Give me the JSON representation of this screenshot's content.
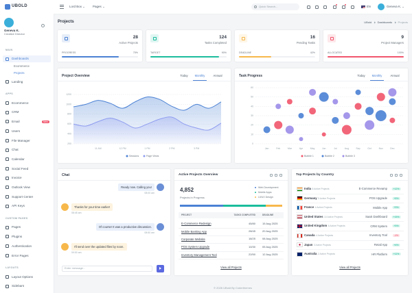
{
  "sidebar": {
    "brand": "UBOLD",
    "user_name": "Geneva K.",
    "user_role": "Creative Director",
    "nav": [
      {
        "title": "MAIN",
        "items": [
          {
            "label": "Dashboards",
            "active": true,
            "children": [
              "Ecommerce",
              "Projects"
            ],
            "active_child": 1
          },
          {
            "label": "Landing"
          }
        ]
      },
      {
        "title": "APPS",
        "items": [
          {
            "label": "Ecommerce"
          },
          {
            "label": "CRM"
          },
          {
            "label": "Email",
            "badge": "New"
          },
          {
            "label": "Users"
          },
          {
            "label": "File Manager"
          },
          {
            "label": "Chat"
          },
          {
            "label": "Calendar"
          },
          {
            "label": "Social Feed"
          },
          {
            "label": "Invoice"
          },
          {
            "label": "Outlook View"
          },
          {
            "label": "Support Center"
          },
          {
            "label": "API Keys"
          }
        ]
      },
      {
        "title": "CUSTOM PAGES",
        "items": [
          {
            "label": "Pages"
          },
          {
            "label": "Plugins"
          },
          {
            "label": "Authentication"
          },
          {
            "label": "Error Pages"
          }
        ]
      },
      {
        "title": "LAYOUTS",
        "items": [
          {
            "label": "Layout Options"
          },
          {
            "label": "Sidebars"
          }
        ]
      }
    ]
  },
  "topbar": {
    "menus": [
      "Lord Box",
      "Pages"
    ],
    "search_placeholder": "Quick Search...",
    "language": "EN",
    "user": "Geneva K."
  },
  "page": {
    "title": "Projects",
    "breadcrumb": [
      "UBold",
      "Dashboards",
      "Projects"
    ]
  },
  "stats": [
    {
      "value": 28,
      "label": "Active Projects",
      "color": "#4a81d4",
      "progress": {
        "label": "PROGRESS",
        "value": 75,
        "value_label": "75%"
      }
    },
    {
      "value": 124,
      "label": "Tasks Completed",
      "color": "#1abc9c",
      "progress": {
        "label": "TARGET",
        "value": 90,
        "value_label": "90%"
      }
    },
    {
      "value": 16,
      "label": "Pending Tasks",
      "color": "#f7b84b",
      "progress": {
        "label": "DEADLINE",
        "value": 42,
        "value_label": "42%"
      }
    },
    {
      "value": 9,
      "label": "Project Managers",
      "color": "#f1556c",
      "progress": {
        "label": "ALLOCATED",
        "value": 100,
        "value_label": "100%"
      }
    }
  ],
  "project_overview": {
    "type": "area",
    "title": "Project Overview",
    "tabs": [
      "Today",
      "Monthly",
      "Annual"
    ],
    "active_tab": 1,
    "categories": [
      null,
      null,
      "11 AM",
      null,
      "12 PM",
      null,
      "1 PM",
      null,
      "2 PM",
      null,
      "3 PM",
      null,
      null
    ],
    "series": [
      {
        "name": "Sessions",
        "color": "#4a81d4",
        "values": [
          950,
          1000,
          1080,
          1020,
          920,
          1050,
          1150,
          1100,
          960,
          880,
          1000,
          920,
          1050
        ]
      },
      {
        "name": "Page Views",
        "color": "#8e9cf0",
        "values": [
          600,
          560,
          650,
          720,
          640,
          520,
          600,
          700,
          740,
          600,
          520,
          480,
          620
        ]
      }
    ],
    "ylim": [
      200,
      1200
    ],
    "yticks": [
      200,
      400,
      600,
      800,
      1000,
      1200
    ],
    "grid": true
  },
  "task_progress": {
    "type": "bubble",
    "title": "Task Progress",
    "tabs": [
      "Today",
      "Monthly",
      "Annual"
    ],
    "active_tab": 1,
    "xlim": [
      0,
      13
    ],
    "xticks": [
      {
        "value": 1,
        "label": "Jan"
      },
      {
        "value": 2,
        "label": "Feb"
      },
      {
        "value": 3,
        "label": "Mar"
      },
      {
        "value": 4,
        "label": "Apr"
      },
      {
        "value": 5,
        "label": "May"
      },
      {
        "value": 6,
        "label": "Jun"
      },
      {
        "value": 7,
        "label": "Jul"
      },
      {
        "value": 8,
        "label": "Aug"
      },
      {
        "value": 9,
        "label": "Sep"
      },
      {
        "value": 10,
        "label": "Oct"
      },
      {
        "value": 11,
        "label": "Nov"
      },
      {
        "value": 12,
        "label": "Dec"
      }
    ],
    "ylim": [
      0,
      60
    ],
    "yticks": [
      0,
      10,
      20,
      30,
      40,
      50,
      60
    ],
    "grid": true,
    "series": [
      {
        "name": "Bubble 1",
        "color": "#f1556c",
        "x": [
          2,
          3,
          5,
          6,
          8,
          9,
          11,
          12
        ],
        "values": [
          20,
          45,
          35,
          10,
          15,
          40,
          50,
          25
        ],
        "sizes": [
          12,
          8,
          10,
          6,
          14,
          10,
          12,
          8
        ]
      },
      {
        "name": "Bubble 2",
        "color": "#4a81d4",
        "x": [
          1,
          4,
          6,
          7,
          9,
          10,
          11,
          12
        ],
        "values": [
          15,
          30,
          50,
          25,
          55,
          35,
          30,
          45
        ],
        "sizes": [
          10,
          8,
          14,
          10,
          8,
          12,
          16,
          10
        ]
      },
      {
        "name": "Bubble 3",
        "color": "#9b8ce8",
        "x": [
          2,
          3,
          4,
          5,
          7,
          8,
          10,
          12
        ],
        "values": [
          40,
          15,
          5,
          55,
          45,
          30,
          20,
          55
        ],
        "sizes": [
          8,
          12,
          6,
          10,
          8,
          10,
          14,
          12
        ]
      }
    ]
  },
  "chat": {
    "title": "Chat",
    "messages": [
      {
        "side": "out",
        "text": "Ready now. Calling you!",
        "time": "08:00 am"
      },
      {
        "side": "in",
        "text": "Thanks for your time earlier!",
        "time": "08:45 am"
      },
      {
        "side": "out",
        "text": "Of course! It was a productive discussion.",
        "time": "08:50 am"
      },
      {
        "side": "in",
        "text": "I'll send over the updated files by noon.",
        "time": "09:00 am"
      }
    ],
    "input_placeholder": "Enter message..."
  },
  "active_projects": {
    "title": "Active Projects Overview",
    "total": "4,852",
    "total_label": "Projects in Progress",
    "legend": [
      {
        "name": "Web Development",
        "color": "#4a81d4"
      },
      {
        "name": "Mobile Apps",
        "color": "#1abc9c"
      },
      {
        "name": "UI/UX Design",
        "color": "#f7b84b"
      }
    ],
    "columns": [
      "PROJECT",
      "TASKS COMPLETED",
      "DEADLINE"
    ],
    "rows": [
      [
        "E-Commerce Redesign",
        "45/80",
        "15 Aug 2025"
      ],
      [
        "Mobile Banking App",
        "28/45",
        "20 Aug 2025"
      ],
      [
        "Corporate Website",
        "18/25",
        "08 Aug 2025"
      ],
      [
        "POS System Upgrade",
        "10/30",
        "05 Aug 2025"
      ],
      [
        "Inventory Management Tool",
        "22/50",
        "12 Aug 2025"
      ]
    ],
    "view_all": "View all Projects"
  },
  "top_countries": {
    "title": "Top Projects by Country",
    "rows": [
      {
        "country": "India",
        "projects": "8 Active Projects",
        "project": "E-Commerce Revamp",
        "change": "+12%"
      },
      {
        "country": "Germany",
        "projects": "5 Active Projects",
        "project": "POS Upgrade",
        "change": "+8%"
      },
      {
        "country": "France",
        "projects": "4 Active Projects",
        "project": "Mobile App",
        "change": "+9%"
      },
      {
        "country": "United States",
        "projects": "10 Active Projects",
        "project": "SaaS Dashboard",
        "change": "+15%"
      },
      {
        "country": "United Kingdom",
        "projects": "6 Active Projects",
        "project": "CRM System",
        "change": "+5%"
      },
      {
        "country": "Canada",
        "projects": "4 Active Projects",
        "project": "Inventory Tool",
        "change": "-4%"
      },
      {
        "country": "Japan",
        "projects": "3 Active Projects",
        "project": "Retail App",
        "change": "+6%"
      },
      {
        "country": "Australia",
        "projects": "2 Active Projects",
        "project": "HR Platform",
        "change": "+11%"
      }
    ],
    "view_all": "View all Projects"
  },
  "footer": "© 2026 UBold By Coderthemes"
}
